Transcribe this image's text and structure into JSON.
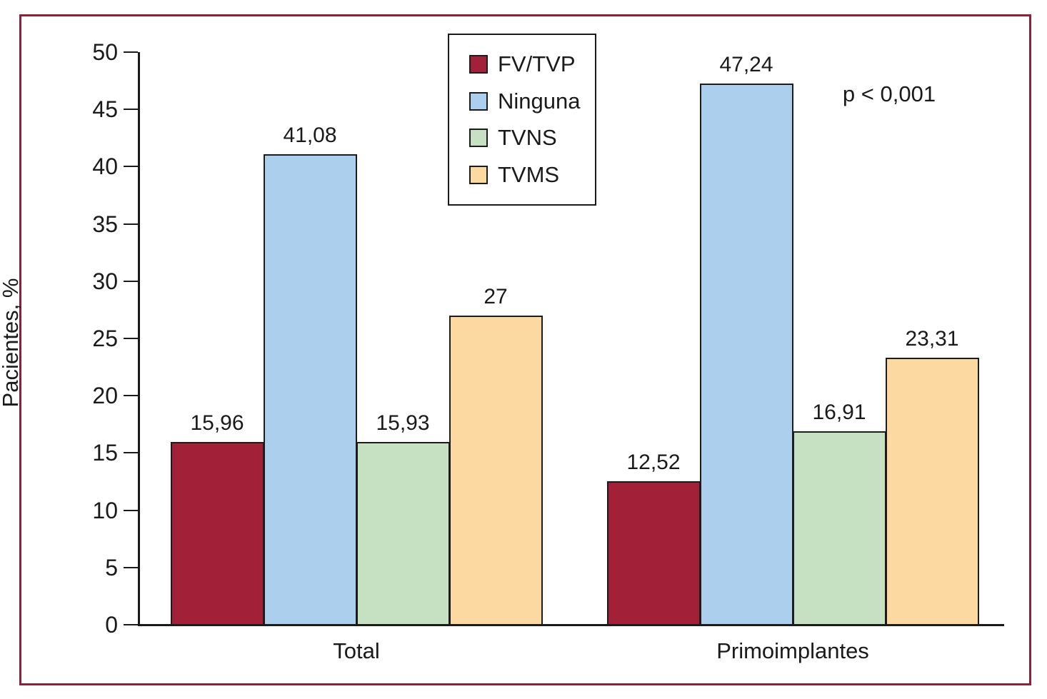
{
  "figure": {
    "frame_color": "#8e2138",
    "background_color": "#ffffff",
    "axis_color": "#1a1a1a",
    "annotation": "p < 0,001"
  },
  "chart_data": {
    "type": "bar",
    "title": "",
    "xlabel": "",
    "ylabel": "Pacientes, %",
    "ylim": [
      0,
      50
    ],
    "ytick_step": 5,
    "ytick_labels": [
      "0",
      "5",
      "10",
      "15",
      "20",
      "25",
      "30",
      "35",
      "40",
      "45",
      "50"
    ],
    "grid": false,
    "legend_position": "top-center",
    "categories": [
      "Total",
      "Primoimplantes"
    ],
    "series": [
      {
        "name": "FV/TVP",
        "color": "#a22038",
        "values": [
          15.96,
          12.52
        ],
        "labels": [
          "15,96",
          "12,52"
        ]
      },
      {
        "name": "Ninguna",
        "color": "#abcfec",
        "values": [
          41.08,
          47.24
        ],
        "labels": [
          "41,08",
          "47,24"
        ]
      },
      {
        "name": "TVNS",
        "color": "#c6e0c2",
        "values": [
          15.93,
          16.91
        ],
        "labels": [
          "15,93",
          "16,91"
        ]
      },
      {
        "name": "TVMS",
        "color": "#fbd9a0",
        "values": [
          27,
          23.31
        ],
        "labels": [
          "27",
          "23,31"
        ]
      }
    ],
    "annotation": "p < 0,001"
  }
}
